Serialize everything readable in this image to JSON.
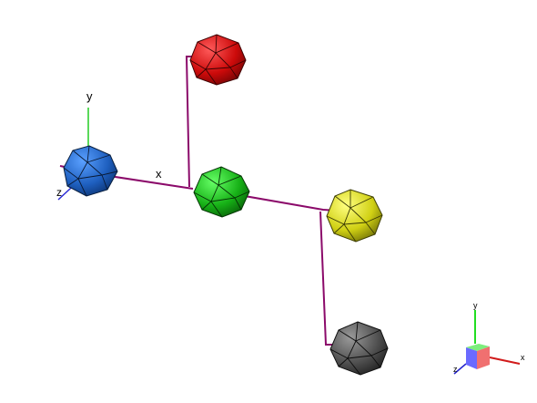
{
  "viewport": {
    "background": "#ffffff",
    "link_color": "#8b0a6a"
  },
  "axes": {
    "x_label": "x",
    "y_label": "y",
    "z_label": "z",
    "x_color": "#d11a1a",
    "y_color": "#22cc22",
    "z_color": "#2222cc"
  },
  "orientation_widget": {
    "x_label": "x",
    "y_label": "y",
    "z_label": "z"
  },
  "nodes": [
    {
      "name": "blue",
      "color": "#1e5fbf"
    },
    {
      "name": "green",
      "color": "#19b519"
    },
    {
      "name": "red",
      "color": "#d61010"
    },
    {
      "name": "yellow",
      "color": "#d8d81c"
    },
    {
      "name": "gray",
      "color": "#555555"
    }
  ]
}
